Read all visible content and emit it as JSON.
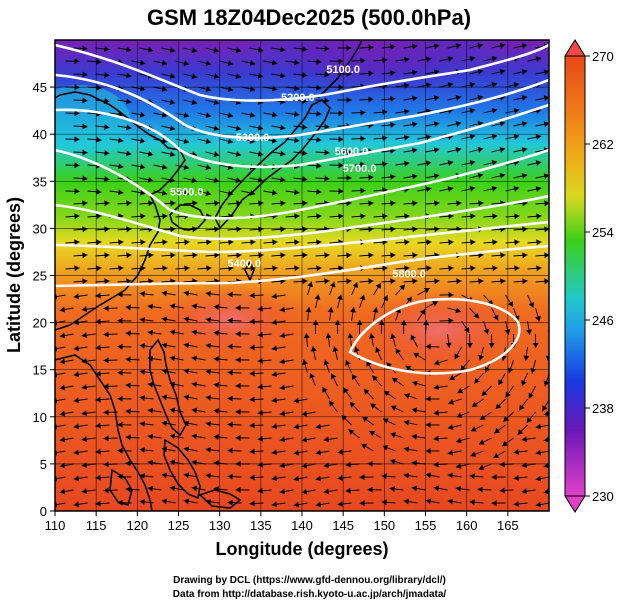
{
  "figure": {
    "title": "GSM 18Z04Dec2025 (500.0hPa)",
    "xlabel": "Longitude (degrees)",
    "ylabel": "Latitude  (degrees)",
    "credit_drawing": "Drawing by DCL (https://www.gfd-dennou.org/library/dcl/)",
    "credit_data": "Data from http://database.rish.kyoto-u.ac.jp/arch/jmadata/"
  },
  "map": {
    "lon_range": [
      110,
      170
    ],
    "lat_range": [
      0,
      50
    ],
    "lon_ticks": [
      110,
      115,
      120,
      125,
      130,
      135,
      140,
      145,
      150,
      155,
      160,
      165
    ],
    "lat_ticks": [
      0,
      5,
      10,
      15,
      20,
      25,
      30,
      35,
      40,
      45
    ],
    "grid": true,
    "field": "temperature (color shading)",
    "wind": "streamlines (black arrows)",
    "contours": [
      {
        "label": "5100.0",
        "lon": 145,
        "lat": 46.5
      },
      {
        "label": "5200.0",
        "lon": 139.5,
        "lat": 43.5
      },
      {
        "label": "5300.0",
        "lon": 134,
        "lat": 39.3
      },
      {
        "label": "5400.0",
        "lon": 133,
        "lat": 25.9
      },
      {
        "label": "5500.0",
        "lon": 126,
        "lat": 33.5
      },
      {
        "label": "5600.0",
        "lon": 146,
        "lat": 37.8
      },
      {
        "label": "5700.0",
        "lon": 147,
        "lat": 36.0
      },
      {
        "label": "5800.0",
        "lon": 153,
        "lat": 24.8
      }
    ]
  },
  "colorbar": {
    "min": 230,
    "max": 270,
    "ticks": [
      "270",
      "262",
      "254",
      "246",
      "238",
      "230"
    ],
    "colors": {
      "magenta": "#e040c8",
      "purple": "#7a1fb4",
      "blue": "#1838e0",
      "cyan": "#22c8d8",
      "green": "#3ad018",
      "yellow": "#e8d820",
      "orange": "#f07818",
      "red": "#e84820"
    }
  }
}
